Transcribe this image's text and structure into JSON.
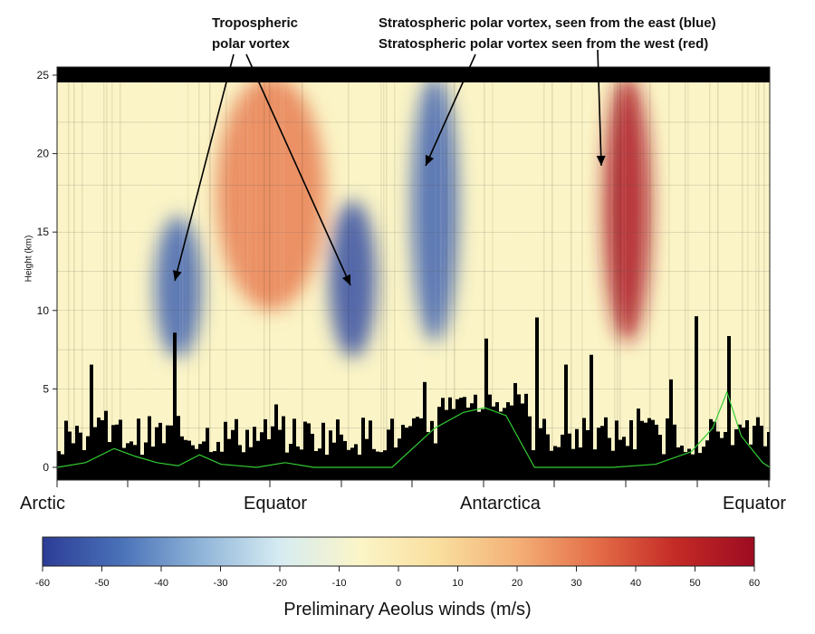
{
  "annotations": {
    "tropospheric": [
      "Tropospheric",
      "polar vortex"
    ],
    "stratospheric": [
      "Stratospheric polar vortex, seen from the east (blue)",
      "Stratospheric polar vortex seen from the west (red)"
    ]
  },
  "regions": [
    "Arctic",
    "Equator",
    "Antarctica",
    "Equator"
  ],
  "colorbar": {
    "label": "Preliminary Aeolus winds (m/s)",
    "ticks": [
      "-60",
      "-50",
      "-40",
      "-30",
      "-20",
      "-10",
      "0",
      "10",
      "20",
      "30",
      "40",
      "50",
      "60"
    ],
    "range": [
      -60,
      60
    ],
    "colors": [
      "#2c3c96",
      "#4a72b8",
      "#8fb4d8",
      "#d6ecf2",
      "#fbf5c8",
      "#f9df9e",
      "#f4b077",
      "#e46e48",
      "#c42b26",
      "#9d0b21"
    ]
  },
  "chart_data": {
    "type": "heatmap",
    "title": "",
    "xlabel": "",
    "ylabel": "Height (km)",
    "ylim": [
      0,
      25
    ],
    "yticks": [
      0,
      5,
      10,
      15,
      20,
      25
    ],
    "xlim": [
      0,
      1
    ],
    "value_range": [
      -60,
      60
    ],
    "colormap": "blue-white-red (diverging)",
    "x_region_labels": [
      {
        "label": "Arctic",
        "x": 0.0
      },
      {
        "label": "Equator",
        "x": 0.27
      },
      {
        "label": "Antarctica",
        "x": 0.59
      },
      {
        "label": "Equator",
        "x": 1.0
      }
    ],
    "wind_features": [
      {
        "name": "Tropospheric polar vortex (west)",
        "x": 0.17,
        "height_range": [
          7,
          16
        ],
        "peak_wind": -50
      },
      {
        "name": "Tropospheric polar vortex (east)",
        "x": 0.415,
        "height_range": [
          7,
          17
        ],
        "peak_wind": -55
      },
      {
        "name": "Stratospheric polar vortex, easterly",
        "x": 0.53,
        "height_range": [
          8,
          25
        ],
        "peak_wind": -50
      },
      {
        "name": "Stratospheric polar vortex, westerly",
        "x": 0.8,
        "height_range": [
          8,
          25
        ],
        "peak_wind": 55
      },
      {
        "name": "Subtropical jet",
        "x": 0.3,
        "height_range": [
          10,
          25
        ],
        "peak_wind": 30
      }
    ],
    "surface_line": {
      "color": "#33cc33",
      "points": [
        [
          0.0,
          0.0
        ],
        [
          0.04,
          0.3
        ],
        [
          0.08,
          1.2
        ],
        [
          0.11,
          0.7
        ],
        [
          0.14,
          0.3
        ],
        [
          0.17,
          0.1
        ],
        [
          0.2,
          0.8
        ],
        [
          0.23,
          0.2
        ],
        [
          0.28,
          0.0
        ],
        [
          0.32,
          0.3
        ],
        [
          0.36,
          0.0
        ],
        [
          0.42,
          0.0
        ],
        [
          0.47,
          0.0
        ],
        [
          0.53,
          2.5
        ],
        [
          0.57,
          3.5
        ],
        [
          0.6,
          3.8
        ],
        [
          0.63,
          3.3
        ],
        [
          0.67,
          0.0
        ],
        [
          0.72,
          0.0
        ],
        [
          0.78,
          0.0
        ],
        [
          0.84,
          0.2
        ],
        [
          0.89,
          1.0
        ],
        [
          0.92,
          2.5
        ],
        [
          0.94,
          4.8
        ],
        [
          0.96,
          2.0
        ],
        [
          0.99,
          0.3
        ],
        [
          1.0,
          0.0
        ]
      ]
    }
  }
}
